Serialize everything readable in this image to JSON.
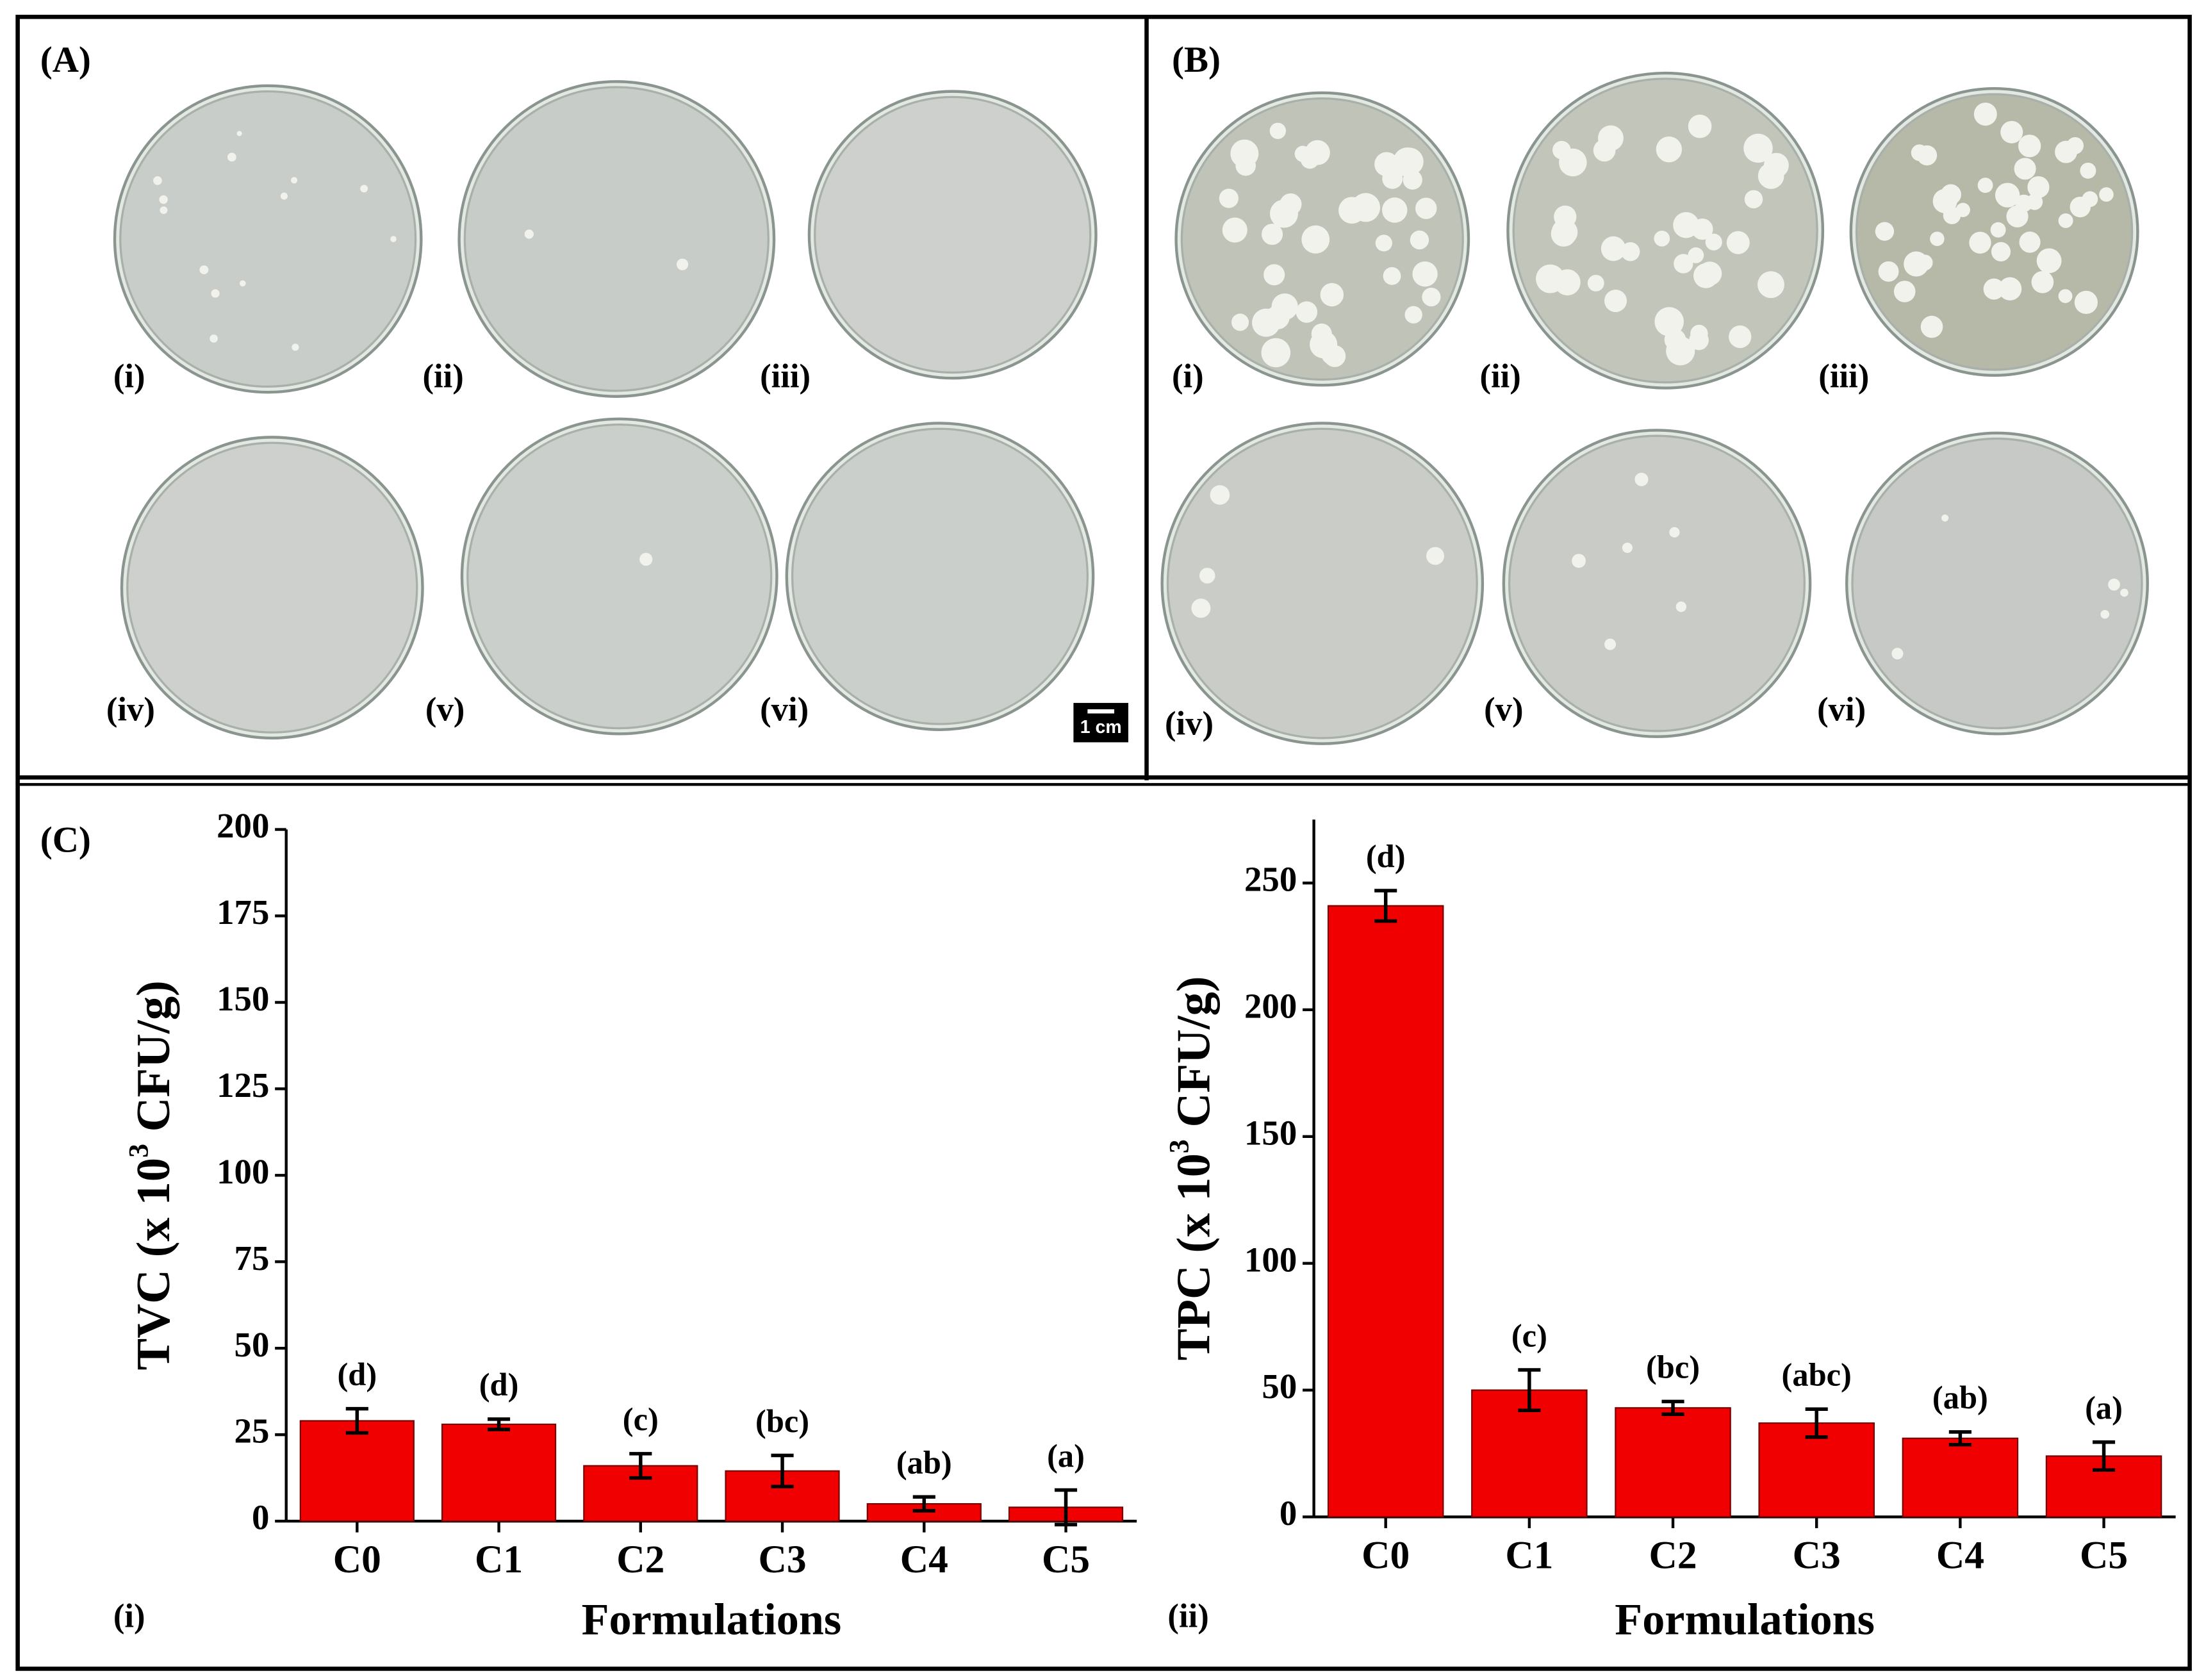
{
  "panels": {
    "A": {
      "label": "(A)",
      "plates": [
        "(i)",
        "(ii)",
        "(iii)",
        "(iv)",
        "(v)",
        "(vi)"
      ]
    },
    "B": {
      "label": "(B)",
      "plates": [
        "(i)",
        "(ii)",
        "(iii)",
        "(iv)",
        "(v)",
        "(vi)"
      ]
    },
    "C": {
      "label": "(C)"
    },
    "scale_bar": "1 cm"
  },
  "chart_data": [
    {
      "type": "bar",
      "sub_label": "(i)",
      "y_label": [
        "TVC (x 10",
        "3",
        " CFU/g)"
      ],
      "x_label": "Formulations",
      "categories": [
        "C0",
        "C1",
        "C2",
        "C3",
        "C4",
        "C5"
      ],
      "values": [
        29,
        28,
        16,
        14.5,
        5,
        4
      ],
      "errors": [
        3.5,
        1.5,
        3.5,
        4.5,
        2,
        5
      ],
      "group_labels": [
        "(d)",
        "(d)",
        "(c)",
        "(bc)",
        "(ab)",
        "(a)"
      ],
      "color": "#f00000",
      "ylim": [
        0,
        200
      ],
      "yticks": [
        0,
        25,
        50,
        75,
        100,
        125,
        150,
        175,
        200
      ]
    },
    {
      "type": "bar",
      "sub_label": "(ii)",
      "y_label": [
        "TPC (x 10",
        "3",
        " CFU/g)"
      ],
      "x_label": "Formulations",
      "categories": [
        "C0",
        "C1",
        "C2",
        "C3",
        "C4",
        "C5"
      ],
      "values": [
        241,
        50,
        43,
        37,
        31,
        24
      ],
      "errors": [
        6,
        8,
        2.5,
        5.5,
        2.5,
        5.5
      ],
      "group_labels": [
        "(d)",
        "(c)",
        "(bc)",
        "(abc)",
        "(ab)",
        "(a)"
      ],
      "color": "#f00000",
      "ylim": [
        0,
        275
      ],
      "yticks": [
        0,
        50,
        100,
        150,
        200,
        250
      ]
    }
  ]
}
